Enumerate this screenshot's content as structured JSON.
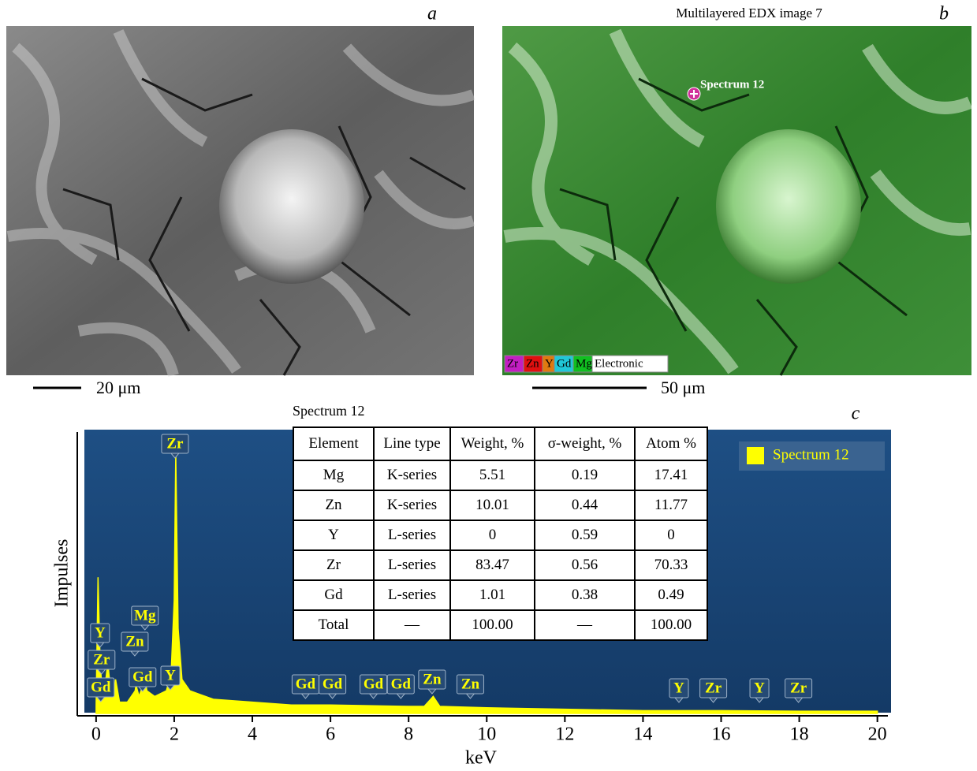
{
  "panel_a": {
    "label": "a",
    "scale_bar": "20 μm"
  },
  "panel_b": {
    "label": "b",
    "title": "Multilayered EDX image 7",
    "marker": "Spectrum 12",
    "legend": [
      {
        "name": "Zr",
        "color": "#c21fc2"
      },
      {
        "name": "Zn",
        "color": "#e01010"
      },
      {
        "name": "Y",
        "color": "#e07a10"
      },
      {
        "name": "Gd",
        "color": "#20c8d8"
      },
      {
        "name": "Mg",
        "color": "#10c020"
      },
      {
        "name": "Electronic",
        "color": "#ffffff"
      }
    ],
    "scale_bar": "50 μm"
  },
  "panel_c": {
    "label": "c"
  },
  "table": {
    "caption": "Spectrum 12",
    "header": [
      "Element",
      "Line type",
      "Weight, %",
      "σ-weight, %",
      "Atom %"
    ],
    "rows": [
      [
        "Mg",
        "K-series",
        "5.51",
        "0.19",
        "17.41"
      ],
      [
        "Zn",
        "K-series",
        "10.01",
        "0.44",
        "11.77"
      ],
      [
        "Y",
        "L-series",
        "0",
        "0.59",
        "0"
      ],
      [
        "Zr",
        "L-series",
        "83.47",
        "0.56",
        "70.33"
      ],
      [
        "Gd",
        "L-series",
        "1.01",
        "0.38",
        "0.49"
      ],
      [
        "Total",
        "—",
        "100.00",
        "—",
        "100.00"
      ]
    ]
  },
  "chart_data": {
    "type": "area",
    "x_label": "keV",
    "y_label": "Impulses",
    "x": [
      0,
      0.05,
      0.1,
      0.15,
      0.2,
      0.3,
      0.4,
      0.5,
      0.6,
      0.8,
      1.0,
      1.02,
      1.1,
      1.25,
      1.3,
      1.5,
      1.8,
      1.92,
      2.0,
      2.04,
      2.1,
      2.2,
      2.4,
      3,
      4,
      5,
      6,
      8,
      8.4,
      8.63,
      8.8,
      10,
      12,
      14,
      16,
      18,
      20
    ],
    "series": [
      {
        "name": "Spectrum 12",
        "color": "#ffff00",
        "values": [
          3,
          48,
          20,
          8,
          6,
          18,
          4,
          12,
          4,
          4,
          8,
          10,
          6,
          12,
          8,
          6,
          8,
          14,
          40,
          92,
          30,
          12,
          8,
          5,
          4,
          3,
          3,
          2.5,
          2.5,
          6,
          2.5,
          2,
          1.5,
          1,
          1,
          0.8,
          0.8
        ]
      }
    ],
    "xlim": [
      -0.3,
      20.35
    ],
    "ylim": [
      0,
      100
    ],
    "xticks": [
      0,
      2,
      4,
      6,
      8,
      10,
      12,
      14,
      16,
      18,
      20
    ],
    "legend": "upper right",
    "peak_labels": [
      {
        "label": "Gd",
        "x": 0.12
      },
      {
        "label": "Zr",
        "x": 0.14
      },
      {
        "label": "Y",
        "x": 0.1
      },
      {
        "label": "Zn",
        "x": 0.99
      },
      {
        "label": "Mg",
        "x": 1.25
      },
      {
        "label": "Gd",
        "x": 1.19
      },
      {
        "label": "Y",
        "x": 1.9
      },
      {
        "label": "Zr",
        "x": 2.02
      },
      {
        "label": "Gd",
        "x": 5.36
      },
      {
        "label": "Gd",
        "x": 6.05
      },
      {
        "label": "Gd",
        "x": 7.1
      },
      {
        "label": "Gd",
        "x": 7.8
      },
      {
        "label": "Zn",
        "x": 8.6
      },
      {
        "label": "Zn",
        "x": 9.58
      },
      {
        "label": "Y",
        "x": 14.92
      },
      {
        "label": "Zr",
        "x": 15.8
      },
      {
        "label": "Y",
        "x": 16.98
      },
      {
        "label": "Zr",
        "x": 17.98
      }
    ]
  }
}
